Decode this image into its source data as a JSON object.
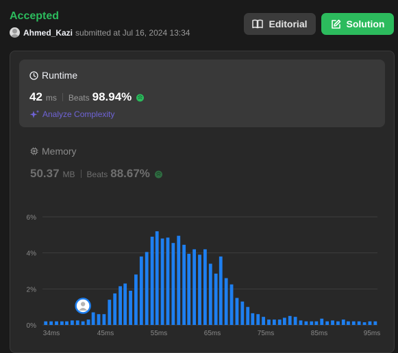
{
  "header": {
    "status": "Accepted",
    "username": "Ahmed_Kazi",
    "submitted_text": "submitted at Jul 16, 2024 13:34",
    "editorial_label": "Editorial",
    "solution_label": "Solution"
  },
  "runtime": {
    "title": "Runtime",
    "value": "42",
    "unit": "ms",
    "beats_label": "Beats",
    "beats_value": "98.94%",
    "analyze_label": "Analyze Complexity"
  },
  "memory": {
    "title": "Memory",
    "value": "50.37",
    "unit": "MB",
    "beats_label": "Beats",
    "beats_value": "88.67%"
  },
  "colors": {
    "accepted": "#2cbb5d",
    "bar": "#1e7ff0",
    "analyze": "#6f63d6"
  },
  "chart_data": {
    "type": "bar",
    "title": "",
    "xlabel": "",
    "ylabel": "",
    "y_ticks": [
      "0%",
      "2%",
      "4%",
      "6%"
    ],
    "ylim": [
      0,
      6
    ],
    "x_ticks": [
      "34ms",
      "45ms",
      "55ms",
      "65ms",
      "75ms",
      "85ms",
      "95ms"
    ],
    "xlim": [
      34,
      96
    ],
    "current_marker_x": 41.5,
    "bar_x": [
      34.6,
      35.6,
      36.6,
      37.6,
      38.5,
      39.5,
      40.5,
      41.5,
      42.5,
      43.4,
      44.4,
      45.4,
      46.4,
      47.4,
      48.4,
      49.3,
      50.3,
      51.3,
      52.3,
      53.3,
      54.3,
      55.2,
      56.2,
      57.2,
      58.2,
      59.2,
      60.2,
      61.1,
      62.1,
      63.1,
      64.1,
      65.1,
      66.1,
      67.0,
      68.0,
      69.0,
      70.0,
      71.0,
      72.0,
      72.9,
      73.9,
      74.9,
      75.9,
      76.9,
      77.9,
      78.8,
      79.8,
      80.8,
      81.8,
      82.8,
      83.8,
      84.7,
      85.7,
      86.7,
      87.7,
      88.7,
      89.7,
      90.6,
      91.6,
      92.6,
      93.6,
      94.6,
      95.6
    ],
    "values": [
      0.2,
      0.2,
      0.2,
      0.2,
      0.2,
      0.25,
      0.25,
      0.2,
      0.3,
      0.7,
      0.6,
      0.6,
      1.4,
      1.75,
      2.15,
      2.3,
      1.9,
      2.8,
      3.8,
      4.05,
      4.9,
      5.2,
      4.8,
      4.85,
      4.55,
      4.95,
      4.45,
      3.95,
      4.2,
      3.9,
      4.2,
      3.4,
      2.85,
      3.8,
      2.6,
      2.25,
      1.5,
      1.3,
      1.0,
      0.65,
      0.6,
      0.45,
      0.3,
      0.3,
      0.3,
      0.4,
      0.5,
      0.45,
      0.25,
      0.2,
      0.2,
      0.2,
      0.35,
      0.2,
      0.25,
      0.2,
      0.3,
      0.2,
      0.2,
      0.2,
      0.15,
      0.2,
      0.2
    ]
  }
}
